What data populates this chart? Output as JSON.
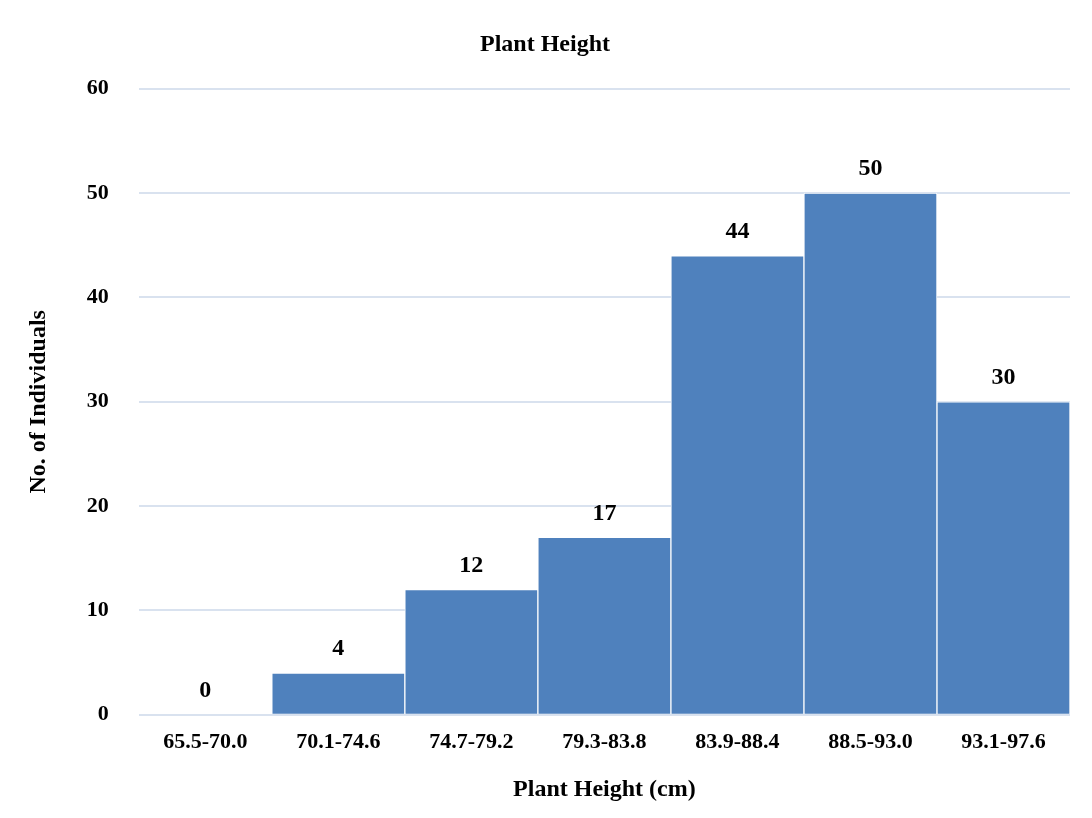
{
  "chart_data": {
    "type": "bar",
    "title": "Plant Height",
    "xlabel": "Plant Height (cm)",
    "ylabel": "No. of Individuals",
    "categories": [
      "65.5-70.0",
      "70.1-74.6",
      "74.7-79.2",
      "79.3-83.8",
      "83.9-88.4",
      "88.5-93.0",
      "93.1-97.6"
    ],
    "values": [
      0,
      4,
      12,
      17,
      44,
      50,
      30
    ],
    "color": "#4f81bd",
    "ylim": [
      0,
      60
    ],
    "yticks": [
      0,
      10,
      20,
      30,
      40,
      50,
      60
    ],
    "grid": "y",
    "legend": false,
    "data_labels": true
  }
}
